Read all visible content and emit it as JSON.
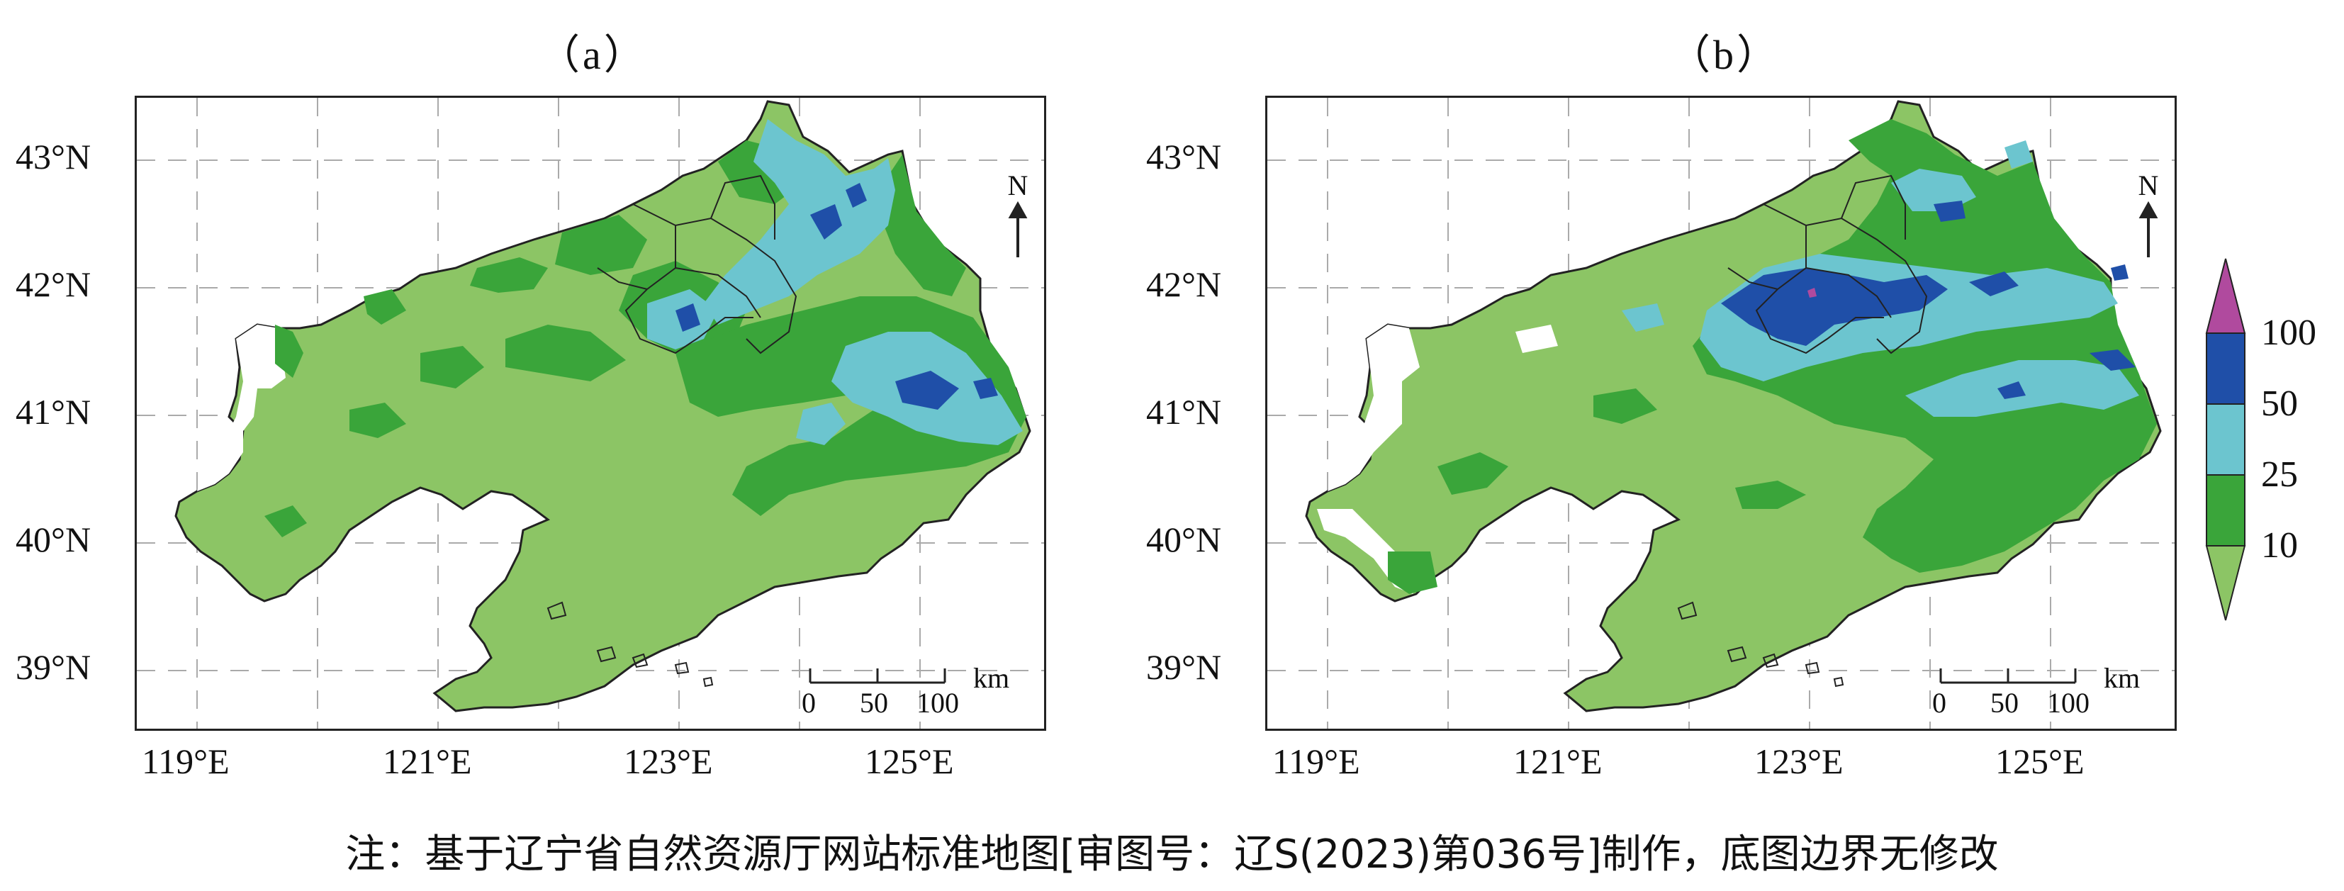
{
  "panels": [
    {
      "id": "a",
      "title": "（a）",
      "lat_labels": [
        "43°N",
        "42°N",
        "41°N",
        "40°N",
        "39°N"
      ],
      "lon_labels": [
        "119°E",
        "121°E",
        "123°E",
        "125°E"
      ],
      "north_label": "N",
      "scale": {
        "ticks": [
          "0",
          "50",
          "100"
        ],
        "unit": "km"
      }
    },
    {
      "id": "b",
      "title": "（b）",
      "lat_labels": [
        "43°N",
        "42°N",
        "41°N",
        "40°N",
        "39°N"
      ],
      "lon_labels": [
        "119°E",
        "121°E",
        "123°E",
        "125°E"
      ],
      "north_label": "N",
      "scale": {
        "ticks": [
          "0",
          "50",
          "100"
        ],
        "unit": "km"
      }
    }
  ],
  "legend": {
    "labels": [
      "100",
      "50",
      "25",
      "10"
    ],
    "colors": {
      "lt10": "#8cc565",
      "c10_25": "#3aa53a",
      "c25_50": "#6cc5cf",
      "c50_100": "#1f4fa8",
      "gt100": "#b04a9e"
    }
  },
  "note": "注：基于辽宁省自然资源厅网站标准地图[审图号：辽S(2023)第036号]制作，底图边界无修改"
}
